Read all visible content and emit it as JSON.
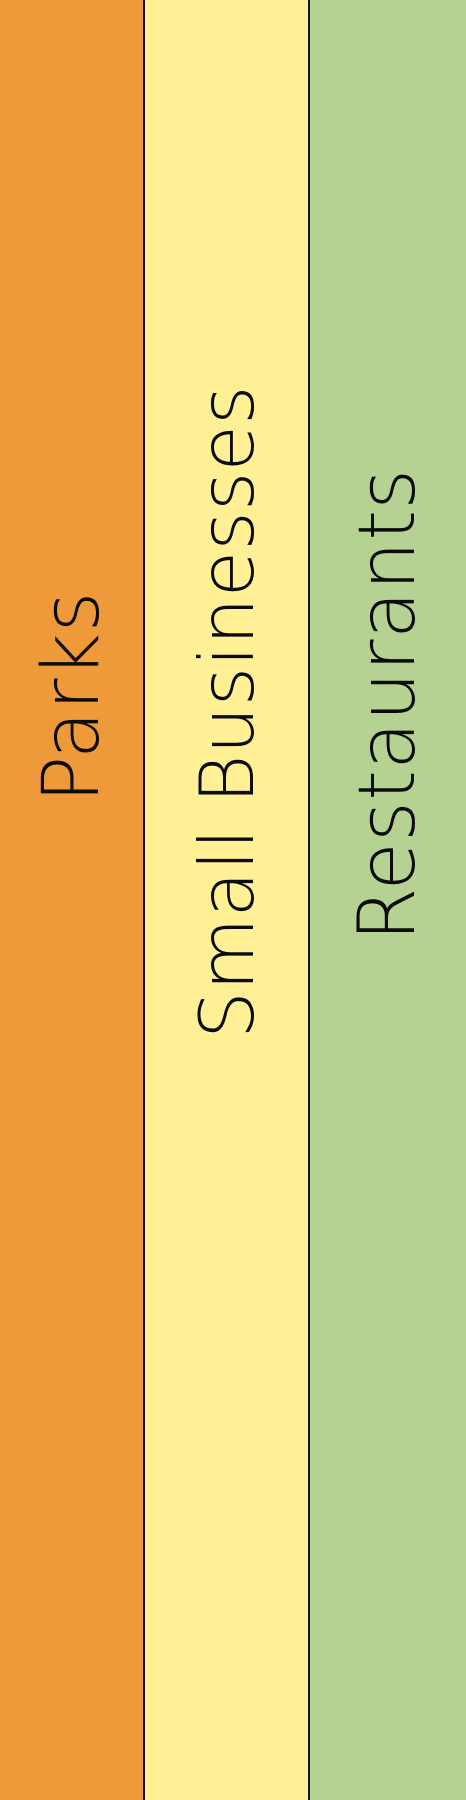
{
  "colors": {
    "parks": "#EE9A3A",
    "small_businesses": "#FFF096",
    "restaurants": "#B6D292",
    "divider": "#111111",
    "text": "#0B0B0B"
  },
  "panels": {
    "parks": {
      "label": "Parks"
    },
    "small_businesses": {
      "label": "Small Businesses"
    },
    "restaurants": {
      "label": "Restaurants"
    }
  }
}
